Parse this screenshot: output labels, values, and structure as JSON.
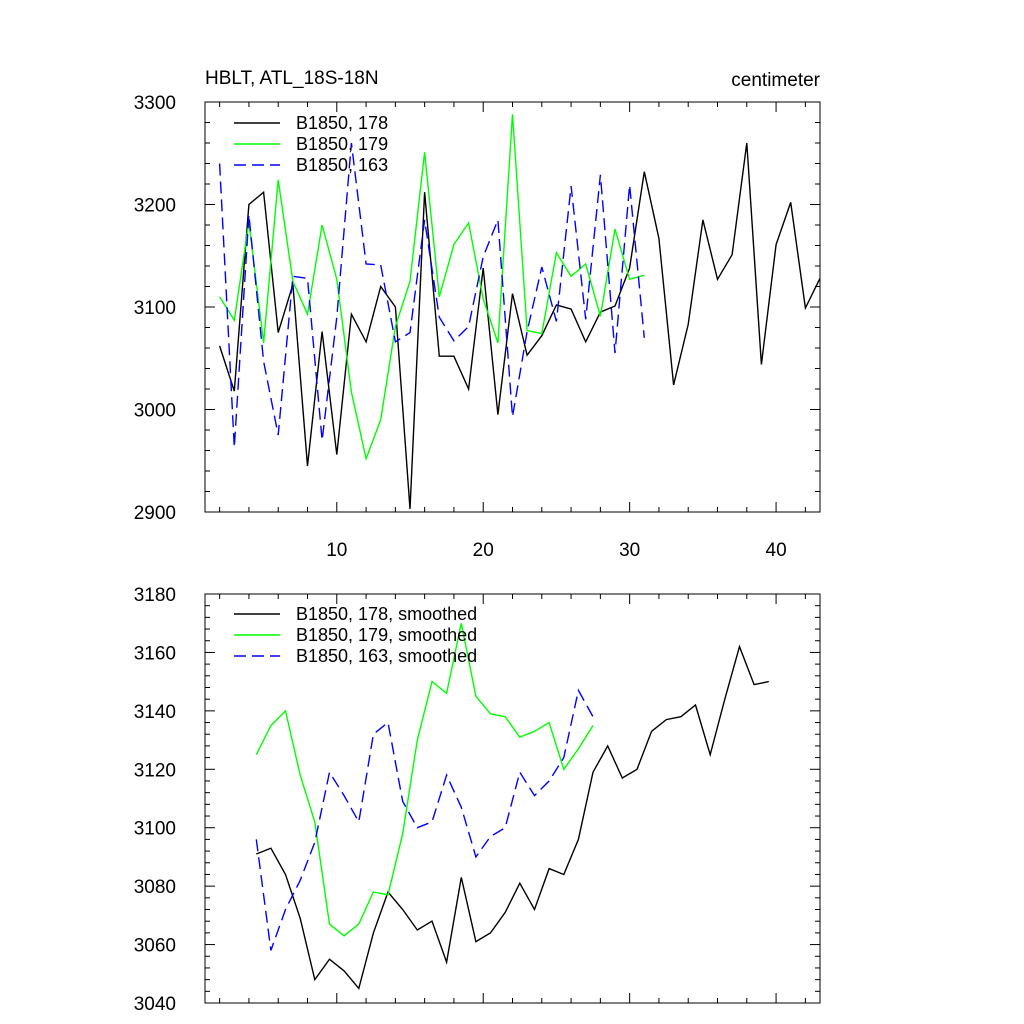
{
  "chart_data": [
    {
      "type": "line",
      "title": "HBLT, ATL_18S-18N",
      "units": "centimeter",
      "xlim": [
        1,
        43
      ],
      "ylim": [
        2900,
        3300
      ],
      "x_ticks": [
        10,
        20,
        30,
        40
      ],
      "y_ticks": [
        2900,
        3000,
        3100,
        3200,
        3300
      ],
      "series": [
        {
          "name": "B1850, 178",
          "color": "#000000",
          "dash": "solid",
          "x": [
            2,
            3,
            4,
            5,
            6,
            7,
            8,
            9,
            10,
            11,
            12,
            13,
            14,
            15,
            16,
            17,
            18,
            19,
            20,
            21,
            22,
            23,
            24,
            25,
            26,
            27,
            28,
            29,
            30,
            31,
            32,
            33,
            34,
            35,
            36,
            37,
            38,
            39,
            40,
            41,
            42,
            43
          ],
          "values": [
            3062,
            3018,
            3200,
            3212,
            3075,
            3122,
            2945,
            3076,
            2956,
            3093,
            3066,
            3120,
            3100,
            2903,
            3212,
            3052,
            3052,
            3020,
            3138,
            2995,
            3113,
            3053,
            3072,
            3102,
            3098,
            3066,
            3095,
            3101,
            3138,
            3232,
            3167,
            3024,
            3083,
            3185,
            3127,
            3151,
            3260,
            3044,
            3161,
            3202,
            3099,
            3128
          ]
        },
        {
          "name": "B1850, 179",
          "color": "#00ff00",
          "dash": "solid",
          "x": [
            2,
            3,
            4,
            5,
            6,
            7,
            8,
            9,
            10,
            11,
            12,
            13,
            14,
            15,
            16,
            17,
            18,
            19,
            20,
            21,
            22,
            23,
            24,
            25,
            26,
            27,
            28,
            29,
            30,
            31
          ],
          "values": [
            3110,
            3087,
            3183,
            3065,
            3224,
            3125,
            3093,
            3180,
            3127,
            3017,
            2952,
            2990,
            3081,
            3125,
            3251,
            3110,
            3161,
            3182,
            3108,
            3065,
            3288,
            3077,
            3074,
            3153,
            3130,
            3142,
            3091,
            3176,
            3127,
            3131
          ]
        },
        {
          "name": "B1850, 163",
          "color": "#0000ff",
          "dash": "dashed",
          "x": [
            2,
            3,
            4,
            5,
            6,
            7,
            8,
            9,
            10,
            11,
            12,
            13,
            14,
            15,
            16,
            17,
            18,
            19,
            20,
            21,
            22,
            23,
            24,
            25,
            26,
            27,
            28,
            29,
            30,
            31
          ],
          "values": [
            3240,
            2963,
            3190,
            3047,
            2975,
            3130,
            3128,
            2970,
            3090,
            3260,
            3142,
            3141,
            3066,
            3075,
            3185,
            3090,
            3067,
            3081,
            3149,
            3185,
            2993,
            3076,
            3139,
            3086,
            3218,
            3088,
            3229,
            3055,
            3219,
            3070
          ]
        }
      ]
    },
    {
      "type": "line",
      "xlim": [
        1,
        43
      ],
      "ylim": [
        3040,
        3180
      ],
      "x_ticks": [
        10,
        20,
        30,
        40
      ],
      "y_ticks": [
        3040,
        3060,
        3080,
        3100,
        3120,
        3140,
        3160,
        3180
      ],
      "series": [
        {
          "name": "B1850, 178, smoothed",
          "color": "#000000",
          "dash": "solid",
          "x": [
            4.5,
            5.5,
            6.5,
            7.5,
            8.5,
            9.5,
            10.5,
            11.5,
            12.5,
            13.5,
            14.5,
            15.5,
            16.5,
            17.5,
            18.5,
            19.5,
            20.5,
            21.5,
            22.5,
            23.5,
            24.5,
            25.5,
            26.5,
            27.5,
            28.5,
            29.5,
            30.5,
            31.5,
            32.5,
            33.5,
            34.5,
            35.5,
            36.5,
            37.5,
            38.5,
            39.5
          ],
          "values": [
            3091,
            3093,
            3084,
            3069,
            3048,
            3055,
            3051,
            3045,
            3064,
            3078,
            3072,
            3065,
            3068,
            3054,
            3083,
            3061,
            3064,
            3071,
            3081,
            3072,
            3086,
            3084,
            3096,
            3119,
            3128,
            3117,
            3120,
            3133,
            3137,
            3138,
            3142,
            3125,
            3144,
            3162,
            3149,
            3150
          ]
        },
        {
          "name": "B1850, 179, smoothed",
          "color": "#00ff00",
          "dash": "solid",
          "x": [
            4.5,
            5.5,
            6.5,
            7.5,
            8.5,
            9.5,
            10.5,
            11.5,
            12.5,
            13.5,
            14.5,
            15.5,
            16.5,
            17.5,
            18.5,
            19.5,
            20.5,
            21.5,
            22.5,
            23.5,
            24.5,
            25.5,
            26.5,
            27.5
          ],
          "values": [
            3125,
            3135,
            3140,
            3118,
            3102,
            3067,
            3063,
            3067,
            3078,
            3077,
            3098,
            3130,
            3150,
            3146,
            3170,
            3145,
            3139,
            3138,
            3131,
            3133,
            3136,
            3120,
            3127,
            3135
          ]
        },
        {
          "name": "B1850, 163, smoothed",
          "color": "#0000ff",
          "dash": "dashed",
          "x": [
            4.5,
            5.5,
            6.5,
            7.5,
            8.5,
            9.5,
            10.5,
            11.5,
            12.5,
            13.5,
            14.5,
            15.5,
            16.5,
            17.5,
            18.5,
            19.5,
            20.5,
            21.5,
            22.5,
            23.5,
            24.5,
            25.5,
            26.5,
            27.5
          ],
          "values": [
            3096,
            3058,
            3072,
            3082,
            3095,
            3119,
            3111,
            3102,
            3132,
            3136,
            3109,
            3100,
            3102,
            3118,
            3107,
            3090,
            3097,
            3100,
            3119,
            3111,
            3116,
            3124,
            3147,
            3138
          ]
        }
      ]
    }
  ]
}
